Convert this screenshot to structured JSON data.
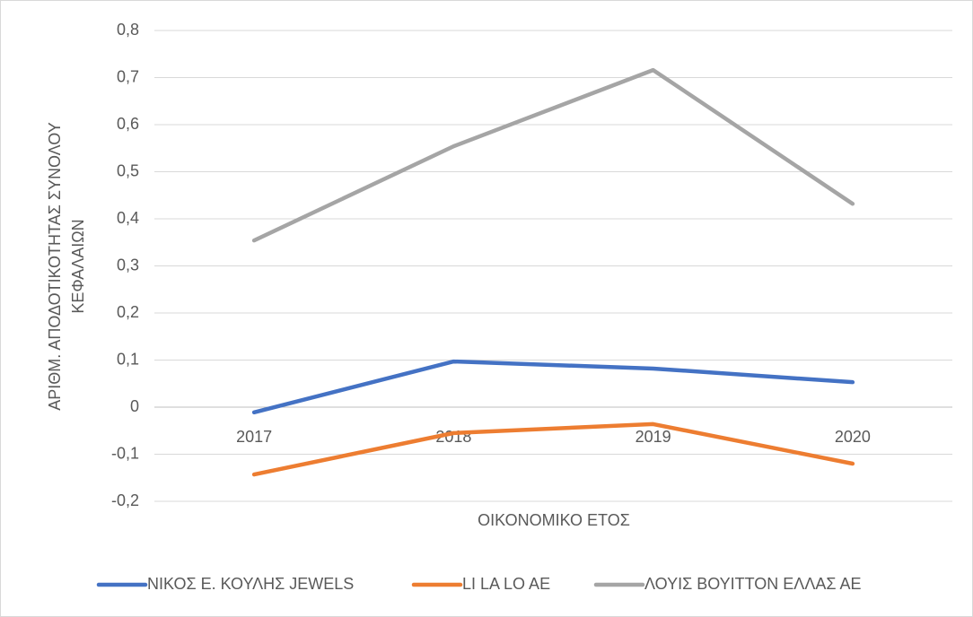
{
  "chart_data": {
    "type": "line",
    "xlabel": "ΟΙΚΟΝΟΜΙΚΟ ΕΤΟΣ",
    "ylabel": [
      "ΑΡΙΘΜ. ΑΠΟΔΟΤΙΚΟΤΗΤΑΣ ΣΥΝΟΛΟΥ",
      "ΚΕΦΑΛΑΙΩΝ"
    ],
    "categories": [
      "2017",
      "2018",
      "2019",
      "2020"
    ],
    "series": [
      {
        "name": "ΝΙΚΟΣ Ε. ΚΟΥΛΗΣ JEWELS",
        "color": "#4472c4",
        "values": [
          -0.011,
          0.097,
          0.082,
          0.053
        ]
      },
      {
        "name": "LI LA LO AE",
        "color": "#ed7d31",
        "values": [
          -0.143,
          -0.055,
          -0.036,
          -0.12
        ]
      },
      {
        "name": "ΛΟΥΙΣ ΒΟΥΙΤΤΟΝ ΕΛΛΑΣ ΑΕ",
        "color": "#a5a5a5",
        "values": [
          0.354,
          0.554,
          0.716,
          0.432
        ]
      }
    ],
    "ylim": [
      -0.2,
      0.8
    ],
    "yticks": [
      {
        "value": -0.2,
        "label": "-0,2"
      },
      {
        "value": -0.1,
        "label": "-0,1"
      },
      0,
      {
        "value": 0.1,
        "label": "0,1"
      },
      {
        "value": 0.2,
        "label": "0,2"
      },
      {
        "value": 0.3,
        "label": "0,3"
      },
      {
        "value": 0.4,
        "label": "0,4"
      },
      {
        "value": 0.5,
        "label": "0,5"
      },
      {
        "value": 0.6,
        "label": "0,6"
      },
      {
        "value": 0.7,
        "label": "0,7"
      },
      {
        "value": 0.8,
        "label": "0,8"
      }
    ],
    "grid": true,
    "legend": "bottom"
  }
}
